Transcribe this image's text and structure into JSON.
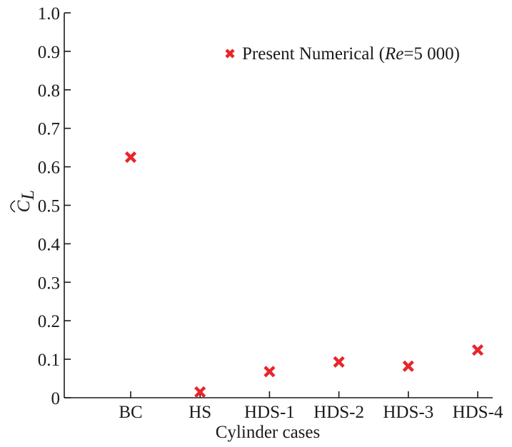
{
  "chart_data": {
    "type": "scatter",
    "categories": [
      "BC",
      "HS",
      "HDS-1",
      "HDS-2",
      "HDS-3",
      "HDS-4"
    ],
    "series": [
      {
        "name": "Present Numerical (Re=5 000)",
        "values": [
          0.625,
          0.015,
          0.068,
          0.093,
          0.082,
          0.124
        ]
      }
    ],
    "xlabel": "Cylinder cases",
    "ylabel": "C_L (hat)",
    "ylim": [
      0,
      1.0
    ],
    "yticks": [
      "0",
      "0.1",
      "0.2",
      "0.3",
      "0.4",
      "0.5",
      "0.6",
      "0.7",
      "0.8",
      "0.9",
      "1.0"
    ],
    "legend": {
      "placement": "top-right",
      "prefix": "Present Numerical (",
      "italic": "Re",
      "suffix": "=5 000)"
    },
    "marker": "x",
    "marker_color": "#e8262b",
    "grid": false
  }
}
